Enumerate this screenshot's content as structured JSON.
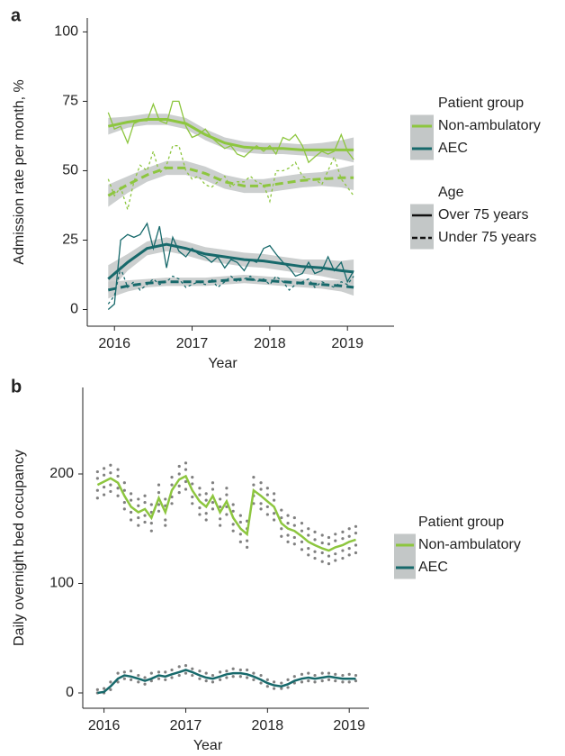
{
  "chart_data": [
    {
      "type": "line",
      "label": "a",
      "xlabel": "Year",
      "ylabel": "Admission rate per month, %",
      "x": [
        2015.92,
        2016.0,
        2016.08,
        2016.17,
        2016.25,
        2016.33,
        2016.42,
        2016.5,
        2016.58,
        2016.67,
        2016.75,
        2016.83,
        2016.92,
        2017.0,
        2017.08,
        2017.17,
        2017.25,
        2017.33,
        2017.42,
        2017.5,
        2017.58,
        2017.67,
        2017.75,
        2017.83,
        2017.92,
        2018.0,
        2018.08,
        2018.17,
        2018.25,
        2018.33,
        2018.42,
        2018.5,
        2018.58,
        2018.67,
        2018.75,
        2018.83,
        2018.92,
        2019.0,
        2019.08
      ],
      "smooth_x": [
        2015.92,
        2016.17,
        2016.42,
        2016.67,
        2016.92,
        2017.17,
        2017.42,
        2017.67,
        2017.92,
        2018.17,
        2018.42,
        2018.67,
        2018.92,
        2019.08
      ],
      "xlim": [
        2015.65,
        2019.6
      ],
      "ylim": [
        -6,
        105
      ],
      "xticks": [
        2016,
        2017,
        2018,
        2019
      ],
      "yticks": [
        0,
        25,
        50,
        75,
        100
      ],
      "legend_title": "Patient group",
      "age_title": "Age",
      "ages": [
        {
          "name": "Over 75 years",
          "dash": false
        },
        {
          "name": "Under 75 years",
          "dash": true
        }
      ],
      "band_color": "#c3c7c7",
      "groups": [
        {
          "name": "Non-ambulatory",
          "color": "#8dc63f",
          "raw": [
            [
              71,
              65,
              66,
              60,
              67,
              68,
              68,
              74,
              68,
              67,
              75,
              75,
              66,
              62,
              63,
              65,
              62,
              60,
              58,
              59,
              56,
              55,
              57,
              59,
              57,
              59,
              56,
              62,
              61,
              63,
              59,
              53,
              55,
              57,
              56,
              57,
              63,
              57,
              54
            ],
            [
              47,
              41,
              44,
              36,
              46,
              52,
              50,
              57,
              49,
              52,
              59,
              59,
              50,
              47,
              48,
              45,
              44,
              46,
              48,
              44,
              46,
              46,
              48,
              46,
              45,
              39,
              50,
              50,
              51,
              53,
              48,
              47,
              47,
              45,
              50,
              55,
              47,
              44,
              41
            ]
          ],
          "smooth": [
            {
              "values": [
                66,
                67.5,
                68.5,
                68.5,
                67,
                63,
                60,
                58.5,
                58,
                58,
                57.5,
                57.5,
                57.5,
                57.5
              ],
              "lower": [
                63,
                65.5,
                66.5,
                66.5,
                65,
                61,
                58,
                56.5,
                56,
                56,
                55.5,
                55,
                54,
                53
              ],
              "upper": [
                69,
                69.5,
                70.5,
                70.5,
                69,
                65,
                62,
                60.5,
                60,
                60,
                59.5,
                60,
                61,
                62
              ]
            },
            {
              "values": [
                41,
                45,
                48.5,
                51,
                51,
                49,
                46,
                44.5,
                44.5,
                45.5,
                46.5,
                47,
                47.5,
                47.5
              ],
              "lower": [
                37,
                42,
                46,
                48.5,
                48.5,
                46.5,
                43.5,
                42,
                42,
                43,
                44,
                44.5,
                44,
                43
              ],
              "upper": [
                45,
                48,
                51,
                53.5,
                53.5,
                51.5,
                48.5,
                47,
                47,
                48,
                49,
                49.5,
                51,
                52
              ]
            }
          ]
        },
        {
          "name": "AEC",
          "color": "#17696b",
          "raw": [
            [
              0,
              2,
              25,
              27,
              26,
              27,
              31,
              22,
              30,
              15,
              26,
              21,
              19,
              22,
              20,
              19,
              17,
              19,
              15,
              18,
              17,
              14,
              18,
              17,
              22,
              23,
              20,
              17,
              15,
              12,
              13,
              17,
              13,
              14,
              19,
              14,
              17,
              10,
              14
            ],
            [
              2,
              5,
              15,
              8,
              10,
              7,
              9,
              11,
              9,
              10,
              12,
              11,
              8,
              9,
              10,
              9,
              11,
              8,
              10,
              12,
              10,
              11,
              12,
              10,
              11,
              9,
              12,
              10,
              7,
              9,
              10,
              11,
              8,
              10,
              9,
              8,
              10,
              9,
              12
            ]
          ],
          "smooth": [
            {
              "values": [
                11,
                17,
                22,
                23.5,
                22,
                20,
                19,
                18,
                17.5,
                16.5,
                15.5,
                15,
                14,
                13.5
              ],
              "lower": [
                6,
                14,
                19.5,
                21,
                19.5,
                17.5,
                16.5,
                15.5,
                15,
                14,
                13,
                12,
                10.5,
                9
              ],
              "upper": [
                16,
                20,
                24.5,
                26,
                24.5,
                22.5,
                21.5,
                20.5,
                20,
                19,
                18,
                18,
                17.5,
                18
              ]
            },
            {
              "values": [
                7,
                8.5,
                9.5,
                10,
                10,
                10,
                10.5,
                11,
                10.5,
                10,
                9.5,
                9,
                8.5,
                8
              ],
              "lower": [
                4,
                6.5,
                8,
                8.5,
                8.5,
                8.5,
                9,
                9.5,
                9,
                8.5,
                8,
                7.5,
                6.5,
                5
              ],
              "upper": [
                10,
                10.5,
                11,
                11.5,
                11.5,
                11.5,
                12,
                12.5,
                12,
                11.5,
                11,
                10.5,
                10.5,
                11
              ]
            }
          ]
        }
      ]
    },
    {
      "type": "scatter",
      "label": "b",
      "xlabel": "Year",
      "ylabel": "Daily overnight bed occupancy",
      "x": [
        2015.92,
        2016.0,
        2016.08,
        2016.17,
        2016.25,
        2016.33,
        2016.42,
        2016.5,
        2016.58,
        2016.67,
        2016.75,
        2016.83,
        2016.92,
        2017.0,
        2017.08,
        2017.17,
        2017.25,
        2017.33,
        2017.42,
        2017.5,
        2017.58,
        2017.67,
        2017.75,
        2017.83,
        2017.92,
        2018.0,
        2018.08,
        2018.17,
        2018.25,
        2018.33,
        2018.42,
        2018.5,
        2018.58,
        2018.67,
        2018.75,
        2018.83,
        2018.92,
        2019.0,
        2019.08
      ],
      "xlim": [
        2015.74,
        2019.24
      ],
      "ylim": [
        -14,
        279
      ],
      "xticks": [
        2016,
        2017,
        2018,
        2019
      ],
      "yticks": [
        0,
        100,
        200
      ],
      "legend_title": "Patient group",
      "point_color": "#808080",
      "band_color": "#c3c7c7",
      "groups": [
        {
          "name": "Non-ambulatory",
          "color": "#8dc63f",
          "line": [
            190,
            193,
            196,
            192,
            180,
            170,
            165,
            168,
            160,
            178,
            165,
            185,
            195,
            198,
            185,
            175,
            170,
            180,
            165,
            175,
            160,
            150,
            145,
            185,
            180,
            175,
            170,
            155,
            150,
            148,
            143,
            138,
            135,
            132,
            130,
            133,
            135,
            138,
            140
          ],
          "points": [
            [
              202,
              205,
              208,
              204,
              192,
              182,
              177,
              180,
              172,
              190,
              177,
              197,
              207,
              210,
              197,
              187,
              182,
              192,
              177,
              187,
              172,
              162,
              157,
              197,
              192,
              187,
              182,
              167,
              162,
              160,
              155,
              150,
              147,
              144,
              142,
              145,
              147,
              150,
              152
            ],
            [
              178,
              181,
              184,
              180,
              168,
              158,
              153,
              156,
              148,
              166,
              153,
              173,
              183,
              186,
              173,
              163,
              158,
              168,
              153,
              163,
              148,
              138,
              133,
              173,
              168,
              163,
              158,
              143,
              138,
              136,
              131,
              126,
              123,
              120,
              118,
              121,
              123,
              126,
              128
            ],
            [
              196,
              188,
              201,
              198,
              185,
              176,
              160,
              174,
              165,
              183,
              158,
              190,
              200,
              204,
              179,
              181,
              164,
              186,
              170,
              170,
              166,
              145,
              150,
              190,
              186,
              170,
              176,
              150,
              155,
              153,
              148,
              132,
              140,
              137,
              125,
              139,
              130,
              143,
              135
            ],
            [
              185,
              199,
              190,
              187,
              174,
              165,
              171,
              162,
              155,
              172,
              171,
              179,
              189,
              193,
              191,
              169,
              176,
              174,
              159,
              181,
              154,
              156,
              139,
              180,
              173,
              181,
              164,
              160,
              144,
              142,
              138,
              144,
              129,
              128,
              136,
              127,
              141,
              132,
              146
            ]
          ]
        },
        {
          "name": "AEC",
          "color": "#17696b",
          "line": [
            0,
            1,
            6,
            13,
            16,
            15,
            13,
            11,
            13,
            16,
            15,
            17,
            19,
            21,
            19,
            16,
            14,
            13,
            15,
            17,
            18,
            18,
            17,
            15,
            12,
            9,
            7,
            6,
            8,
            11,
            13,
            14,
            13,
            14,
            15,
            14,
            13,
            13,
            13
          ],
          "points": [
            [
              3,
              4,
              10,
              18,
              19,
              20,
              16,
              14,
              18,
              19,
              19,
              21,
              24,
              25,
              22,
              20,
              18,
              16,
              19,
              20,
              22,
              21,
              21,
              18,
              16,
              12,
              10,
              9,
              12,
              15,
              17,
              18,
              16,
              18,
              18,
              17,
              16,
              17,
              16
            ],
            [
              0,
              0,
              3,
              10,
              13,
              12,
              10,
              8,
              11,
              13,
              12,
              14,
              16,
              18,
              16,
              13,
              11,
              10,
              12,
              14,
              15,
              15,
              14,
              12,
              9,
              6,
              4,
              4,
              5,
              9,
              10,
              11,
              10,
              11,
              12,
              11,
              10,
              10,
              11
            ]
          ]
        }
      ]
    }
  ]
}
